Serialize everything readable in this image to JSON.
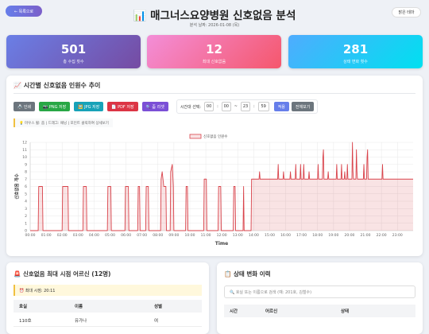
{
  "header": {
    "back_button": "← 목록으로",
    "title": "📊 매그너스요양병원 신호없음 분석",
    "date": "분석 날짜: 2026-01-08 (목)",
    "theme_button": "밝은 테마"
  },
  "stats": [
    {
      "value": 501,
      "label": "총 수집 횟수"
    },
    {
      "value": 12,
      "label": "최대 신호없음"
    },
    {
      "value": 281,
      "label": "상태 변화 횟수"
    }
  ],
  "chart_panel": {
    "title": "📈 시간별 신호없음 인원수 추이",
    "buttons": [
      "🖨️ 인쇄",
      "📷 PNG 저장",
      "🖼️ JPG 저장",
      "📄 PDF 저장",
      "🔍 줌 리셋"
    ],
    "time_range_label": "시간대 선택:",
    "start_hour": "00",
    "start_minute": "00",
    "colon": ":",
    "separator": "~",
    "end_hour": "23",
    "end_minute": "59",
    "apply_button": "적용",
    "reset_button": "전체보기",
    "hint": "💡 마우스 휠: 줌 | 드래그: 패닝 | 포인트 클릭하여 상세보기"
  },
  "chart_data": {
    "type": "line",
    "x_label": "Time",
    "y_label": "신호없음 개수",
    "xlim": [
      "00:00",
      "23:59"
    ],
    "xticks": [
      "00:00",
      "01:00",
      "02:00",
      "03:00",
      "04:00",
      "05:00",
      "06:00",
      "07:00",
      "08:00",
      "09:00",
      "10:00",
      "11:00",
      "12:00",
      "13:00",
      "14:00",
      "15:00",
      "16:00",
      "17:00",
      "18:00",
      "19:00",
      "20:00",
      "21:00",
      "22:00",
      "23:00"
    ],
    "ylim": [
      0,
      12
    ],
    "yticks": [
      0,
      1,
      2,
      3,
      4,
      5,
      6,
      7,
      8,
      9,
      10,
      11,
      12
    ],
    "grid": true,
    "legend": "top",
    "x": [
      "00:00",
      "00:30",
      "00:32",
      "00:46",
      "00:48",
      "02:00",
      "02:02",
      "02:22",
      "02:24",
      "03:18",
      "03:20",
      "03:31",
      "03:33",
      "04:50",
      "04:52",
      "05:03",
      "05:05",
      "05:56",
      "05:58",
      "06:09",
      "06:11",
      "06:44",
      "06:46",
      "06:51",
      "06:53",
      "07:14",
      "07:16",
      "07:24",
      "07:26",
      "08:10",
      "08:12",
      "08:16",
      "08:22",
      "08:30",
      "08:32",
      "08:46",
      "08:48",
      "08:54",
      "08:58",
      "09:00",
      "09:44",
      "09:46",
      "09:51",
      "09:53",
      "10:52",
      "10:54",
      "11:02",
      "11:04",
      "11:46",
      "11:48",
      "11:56",
      "11:58",
      "12:43",
      "12:45",
      "12:50",
      "12:52",
      "13:20",
      "13:22",
      "13:24",
      "13:50",
      "13:52",
      "14:20",
      "14:22",
      "14:24",
      "15:30",
      "15:32",
      "15:34",
      "15:50",
      "15:52",
      "15:54",
      "16:16",
      "16:18",
      "16:20",
      "16:36",
      "16:38",
      "16:40",
      "16:54",
      "16:56",
      "16:58",
      "17:06",
      "17:08",
      "17:10",
      "17:26",
      "17:28",
      "17:30",
      "18:00",
      "18:02",
      "18:04",
      "18:18",
      "18:20",
      "18:22",
      "18:24",
      "18:38",
      "18:40",
      "18:42",
      "19:10",
      "19:12",
      "19:14",
      "19:28",
      "19:30",
      "19:32",
      "19:40",
      "19:42",
      "19:44",
      "19:50",
      "19:52",
      "19:54",
      "20:09",
      "20:11",
      "20:13",
      "20:15",
      "20:24",
      "20:26",
      "20:28",
      "20:30",
      "20:52",
      "20:54",
      "20:56",
      "21:04",
      "21:06",
      "21:08",
      "21:10",
      "22:02",
      "22:04",
      "22:06",
      "23:59"
    ],
    "series": [
      {
        "name": "신호없음 인원수",
        "color": "#d9434b",
        "fill": "rgba(217,67,75,0.15)",
        "values": [
          0,
          0,
          6,
          6,
          0,
          0,
          6,
          6,
          0,
          0,
          6,
          6,
          0,
          0,
          6,
          6,
          0,
          0,
          6,
          6,
          0,
          0,
          6,
          6,
          0,
          0,
          6,
          6,
          0,
          0,
          7,
          8,
          6,
          6,
          0,
          0,
          8,
          9,
          6,
          0,
          0,
          6,
          6,
          0,
          0,
          7,
          7,
          0,
          0,
          6,
          6,
          0,
          0,
          6,
          6,
          0,
          0,
          6,
          0,
          0,
          7,
          7,
          8,
          7,
          7,
          9,
          7,
          7,
          8,
          7,
          7,
          8,
          7,
          7,
          9,
          7,
          7,
          9,
          7,
          7,
          9,
          7,
          7,
          8,
          7,
          7,
          9,
          7,
          7,
          10,
          11,
          7,
          7,
          8,
          7,
          7,
          9,
          7,
          7,
          9,
          7,
          7,
          8,
          7,
          7,
          9,
          7,
          7,
          12,
          8,
          7,
          7,
          11,
          8,
          7,
          7,
          9,
          7,
          7,
          10,
          11,
          7,
          7,
          9,
          7,
          7
        ]
      }
    ]
  },
  "max_panel": {
    "title": "🚨 신호없음 최대 시점 어르신 (12명)",
    "max_time": "⏰ 최대 시점: 20:11",
    "table": {
      "header": [
        "호실",
        "이름",
        "성별"
      ],
      "rows": [
        [
          "110호",
          "유가나",
          "여"
        ]
      ]
    }
  },
  "history_panel": {
    "title": "📋 상태 변화 이력",
    "search_placeholder": "🔍 호실 또는 이름으로 검색 (예: 201호, 김철수)",
    "table": {
      "header": [
        "시간",
        "어르신",
        "상태"
      ]
    }
  }
}
